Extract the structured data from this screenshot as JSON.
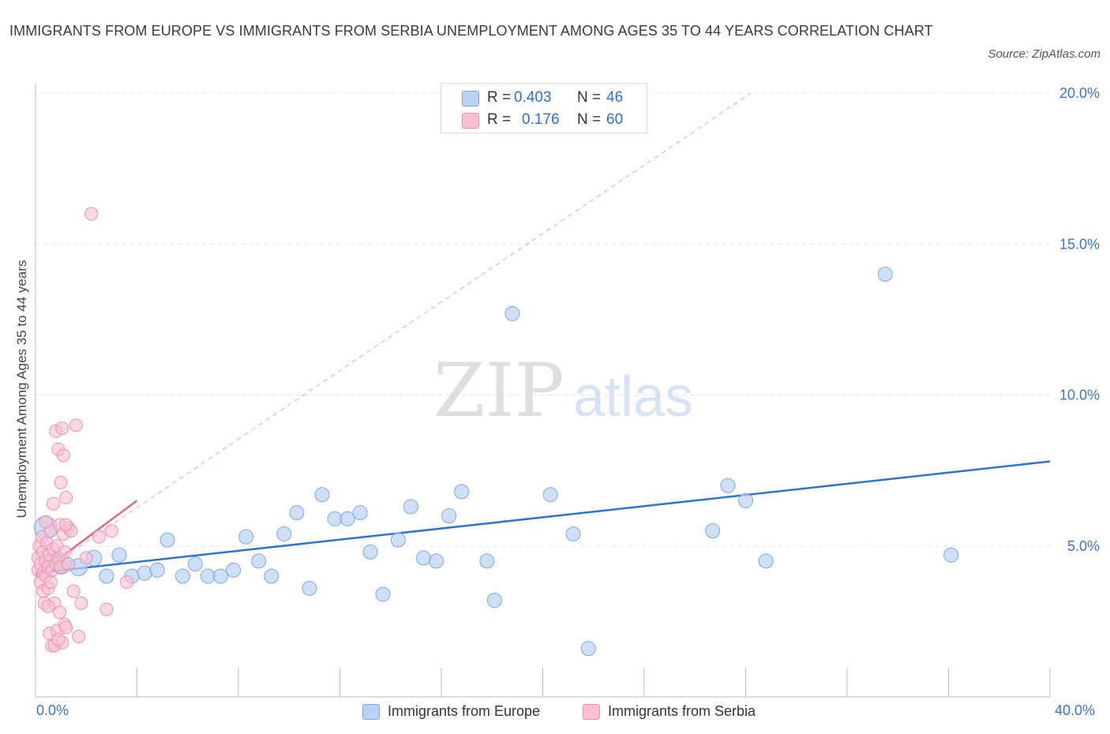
{
  "title": "IMMIGRANTS FROM EUROPE VS IMMIGRANTS FROM SERBIA UNEMPLOYMENT AMONG AGES 35 TO 44 YEARS CORRELATION CHART",
  "source": "Source: ZipAtlas.com",
  "legend_top": {
    "rows": [
      {
        "r_label": "R =",
        "r_value": "0.403",
        "n_label": "N =",
        "n_value": "46"
      },
      {
        "r_label": "R =",
        "r_value": "0.176",
        "n_label": "N =",
        "n_value": "60"
      }
    ]
  },
  "legend_bottom": {
    "items": [
      "Immigrants from Europe",
      "Immigrants from Serbia"
    ]
  },
  "x_labels": {
    "min": "0.0%",
    "max": "40.0%"
  },
  "watermark": {
    "zip": "ZIP",
    "atlas": "atlas"
  },
  "colors": {
    "europe_fill": "#b9d1f5",
    "europe_stroke": "#7fa6e0",
    "europe_line": "#2f72d0",
    "serbia_fill": "#f7c0d2",
    "serbia_stroke": "#ec8fb0",
    "serbia_line": "#e0638f",
    "axis_label": "#3b73c8",
    "grid": "#e3e3e3"
  },
  "chart_data": {
    "type": "scatter",
    "title": "IMMIGRANTS FROM EUROPE VS IMMIGRANTS FROM SERBIA UNEMPLOYMENT AMONG AGES 35 TO 44 YEARS CORRELATION CHART",
    "xlabel": "",
    "ylabel": "Unemployment Among Ages 35 to 44 years",
    "xlim": [
      0,
      40
    ],
    "ylim": [
      0,
      20
    ],
    "y_ticks": [
      5,
      10,
      15,
      20
    ],
    "y_tick_labels": [
      "5.0%",
      "10.0%",
      "15.0%",
      "20.0%"
    ],
    "x_tick_labels": [
      "0.0%",
      "40.0%"
    ],
    "grid": true,
    "legend_position": "bottom",
    "series": [
      {
        "name": "Immigrants from Europe",
        "R": 0.403,
        "N": 46,
        "trend": [
          [
            0,
            4.1
          ],
          [
            40,
            7.8
          ]
        ],
        "points": [
          [
            0.4,
            5.6,
            1.6
          ],
          [
            1.0,
            4.4,
            1.4
          ],
          [
            1.7,
            4.3,
            1.2
          ],
          [
            2.3,
            4.6,
            1.1
          ],
          [
            2.8,
            4.0,
            1.0
          ],
          [
            3.3,
            4.7,
            1.0
          ],
          [
            3.8,
            4.0,
            1.0
          ],
          [
            4.3,
            4.1,
            1.0
          ],
          [
            4.8,
            4.2,
            1.0
          ],
          [
            5.2,
            5.2,
            1.0
          ],
          [
            5.8,
            4.0,
            1.0
          ],
          [
            6.3,
            4.4,
            1.0
          ],
          [
            6.8,
            4.0,
            1.0
          ],
          [
            7.3,
            4.0,
            1.0
          ],
          [
            7.8,
            4.2,
            1.0
          ],
          [
            8.3,
            5.3,
            1.0
          ],
          [
            8.8,
            4.5,
            1.0
          ],
          [
            9.3,
            4.0,
            1.0
          ],
          [
            9.8,
            5.4,
            1.0
          ],
          [
            10.3,
            6.1,
            1.0
          ],
          [
            10.8,
            3.6,
            1.0
          ],
          [
            11.3,
            6.7,
            1.0
          ],
          [
            11.8,
            5.9,
            1.0
          ],
          [
            12.3,
            5.9,
            1.0
          ],
          [
            12.8,
            6.1,
            1.0
          ],
          [
            13.2,
            4.8,
            1.0
          ],
          [
            13.7,
            3.4,
            1.0
          ],
          [
            14.3,
            5.2,
            1.0
          ],
          [
            14.8,
            6.3,
            1.0
          ],
          [
            15.3,
            4.6,
            1.0
          ],
          [
            15.8,
            4.5,
            1.0
          ],
          [
            16.3,
            6.0,
            1.0
          ],
          [
            16.8,
            6.8,
            1.0
          ],
          [
            17.8,
            4.5,
            1.0
          ],
          [
            18.1,
            3.2,
            1.0
          ],
          [
            18.8,
            12.7,
            1.0
          ],
          [
            20.3,
            6.7,
            1.0
          ],
          [
            21.2,
            5.4,
            1.0
          ],
          [
            21.8,
            1.6,
            1.0
          ],
          [
            26.7,
            5.5,
            1.0
          ],
          [
            27.3,
            7.0,
            1.0
          ],
          [
            28.0,
            6.5,
            1.0
          ],
          [
            28.8,
            4.5,
            1.0
          ],
          [
            33.5,
            14.0,
            1.0
          ],
          [
            36.1,
            4.7,
            1.0
          ],
          [
            0.6,
            4.5,
            1.0
          ]
        ]
      },
      {
        "name": "Immigrants from Serbia",
        "R": 0.176,
        "N": 60,
        "trend": [
          [
            0,
            4.0
          ],
          [
            4,
            6.5
          ]
        ],
        "trend_extended": [
          [
            0,
            4.0
          ],
          [
            28.2,
            20.0
          ]
        ],
        "points": [
          [
            0.1,
            4.2
          ],
          [
            0.1,
            4.6
          ],
          [
            0.15,
            5.0
          ],
          [
            0.2,
            3.8
          ],
          [
            0.2,
            4.4
          ],
          [
            0.25,
            5.3
          ],
          [
            0.3,
            3.5
          ],
          [
            0.3,
            4.1
          ],
          [
            0.3,
            4.8
          ],
          [
            0.35,
            3.1
          ],
          [
            0.4,
            4.0
          ],
          [
            0.4,
            4.5
          ],
          [
            0.45,
            5.1
          ],
          [
            0.5,
            3.6
          ],
          [
            0.5,
            4.3
          ],
          [
            0.55,
            2.1
          ],
          [
            0.55,
            4.7
          ],
          [
            0.6,
            3.8
          ],
          [
            0.6,
            5.5
          ],
          [
            0.65,
            1.7
          ],
          [
            0.65,
            4.2
          ],
          [
            0.7,
            6.4
          ],
          [
            0.7,
            4.9
          ],
          [
            0.75,
            1.7
          ],
          [
            0.75,
            3.1
          ],
          [
            0.8,
            8.8
          ],
          [
            0.8,
            4.4
          ],
          [
            0.85,
            2.2
          ],
          [
            0.85,
            5.0
          ],
          [
            0.9,
            8.2
          ],
          [
            0.9,
            4.6
          ],
          [
            0.95,
            2.8
          ],
          [
            0.95,
            5.7
          ],
          [
            1.0,
            7.1
          ],
          [
            1.0,
            4.3
          ],
          [
            1.05,
            8.9
          ],
          [
            1.05,
            1.8
          ],
          [
            1.1,
            8.0
          ],
          [
            1.1,
            5.4
          ],
          [
            1.15,
            2.4
          ],
          [
            1.15,
            4.8
          ],
          [
            1.2,
            6.6
          ],
          [
            1.2,
            2.3
          ],
          [
            1.3,
            5.6
          ],
          [
            1.3,
            4.4
          ],
          [
            1.4,
            5.5
          ],
          [
            1.5,
            3.5
          ],
          [
            1.6,
            9.0
          ],
          [
            1.7,
            2.0
          ],
          [
            1.8,
            3.1
          ],
          [
            2.0,
            4.6
          ],
          [
            2.2,
            16.0
          ],
          [
            2.5,
            5.3
          ],
          [
            2.8,
            2.9
          ],
          [
            3.0,
            5.5
          ],
          [
            3.6,
            3.8
          ],
          [
            0.5,
            3.0
          ],
          [
            0.9,
            1.9
          ],
          [
            1.2,
            5.7
          ],
          [
            0.4,
            5.8
          ]
        ]
      }
    ]
  }
}
